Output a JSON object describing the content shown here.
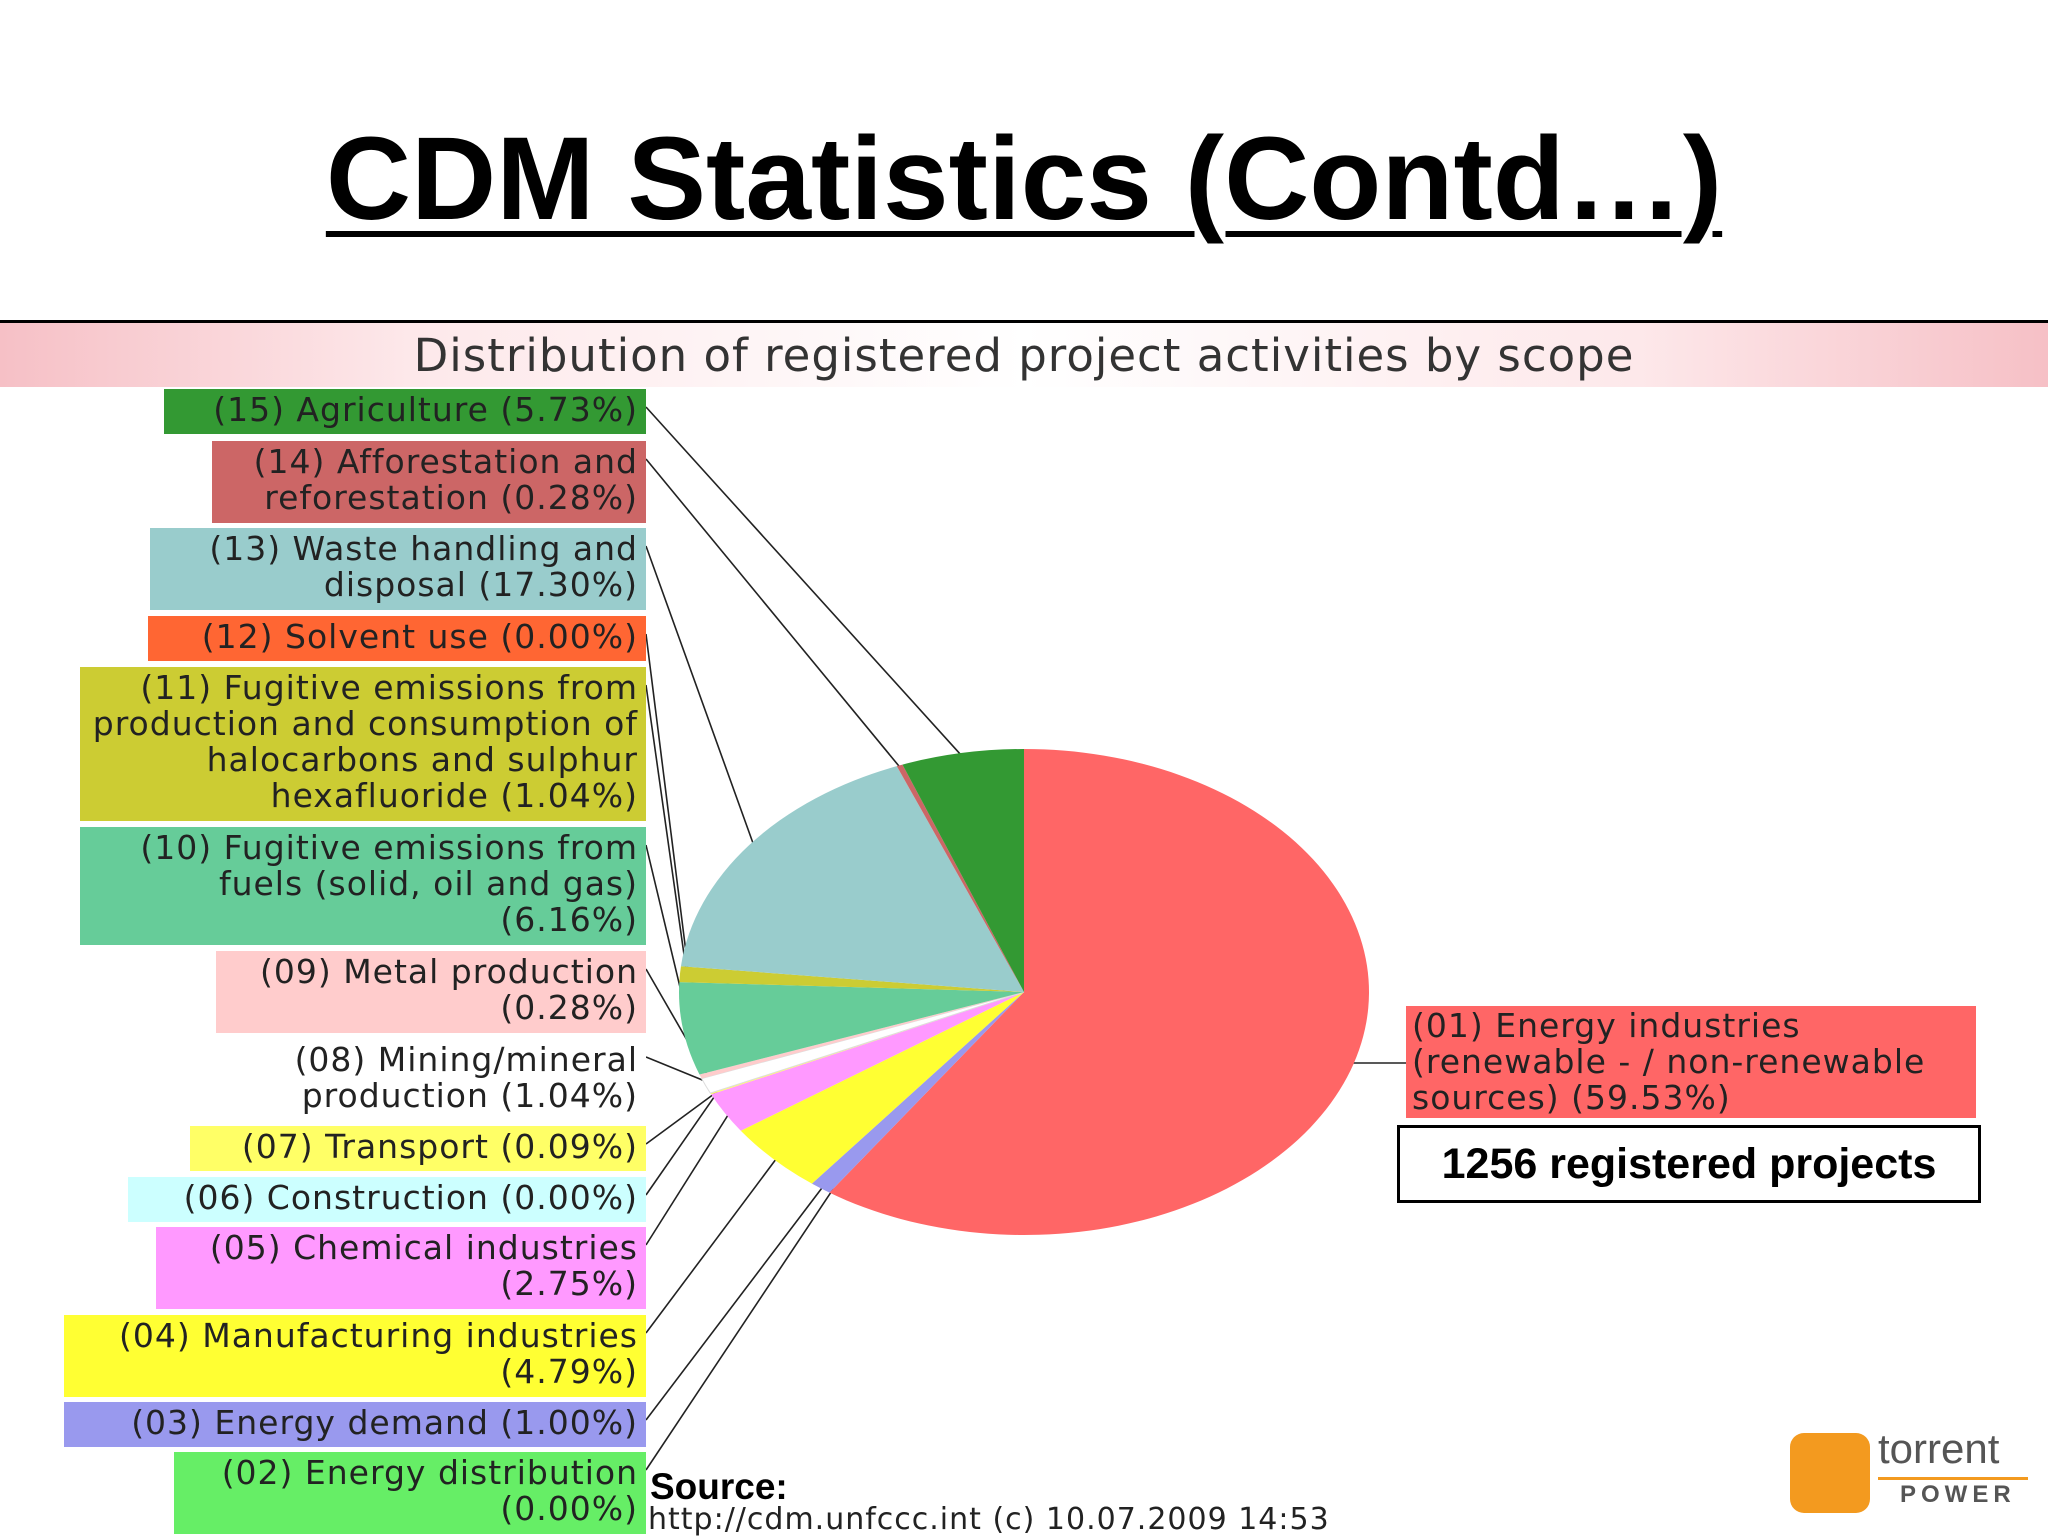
{
  "page": {
    "title": "CDM Statistics (Contd…)",
    "projects_box": "1256 registered projects",
    "source_label": "Source:",
    "source_url": "http://cdm.unfccc.int (c) 10.07.2009 14:53",
    "logo": {
      "brand": "torrent",
      "sub": "POWER"
    }
  },
  "chart_data": {
    "type": "pie",
    "title": "Distribution of registered project activities by scope",
    "slices": [
      {
        "code": "01",
        "label": "(01) Energy industries (renewable - / non-renewable sources) (59.53%)",
        "value": 59.53,
        "color": "#ff6666"
      },
      {
        "code": "02",
        "label": "(02) Energy distribution (0.00%)",
        "value": 0.0,
        "color": "#66ee66"
      },
      {
        "code": "03",
        "label": "(03) Energy demand (1.00%)",
        "value": 1.0,
        "color": "#9999ee"
      },
      {
        "code": "04",
        "label": "(04) Manufacturing industries (4.79%)",
        "value": 4.79,
        "color": "#ffff33"
      },
      {
        "code": "05",
        "label": "(05) Chemical industries (2.75%)",
        "value": 2.75,
        "color": "#ff99ff"
      },
      {
        "code": "06",
        "label": "(06) Construction (0.00%)",
        "value": 0.0,
        "color": "#ccffff"
      },
      {
        "code": "07",
        "label": "(07) Transport (0.09%)",
        "value": 0.09,
        "color": "#ffff66"
      },
      {
        "code": "08",
        "label": "(08) Mining/mineral production (1.04%)",
        "value": 1.04,
        "color": "#ffffff"
      },
      {
        "code": "09",
        "label": "(09) Metal production (0.28%)",
        "value": 0.28,
        "color": "#ffcccc"
      },
      {
        "code": "10",
        "label": "(10) Fugitive emissions from fuels (solid, oil and gas) (6.16%)",
        "value": 6.16,
        "color": "#66cc99"
      },
      {
        "code": "11",
        "label": "(11) Fugitive emissions from production and consumption of halocarbons and sulphur hexafluoride (1.04%)",
        "value": 1.04,
        "color": "#cccc33"
      },
      {
        "code": "12",
        "label": "(12) Solvent use (0.00%)",
        "value": 0.0,
        "color": "#ff6633"
      },
      {
        "code": "13",
        "label": "(13) Waste handling and disposal (17.30%)",
        "value": 17.3,
        "color": "#99cccc"
      },
      {
        "code": "14",
        "label": "(14) Afforestation and reforestation (0.28%)",
        "value": 0.28,
        "color": "#cc6666"
      },
      {
        "code": "15",
        "label": "(15) Agriculture (5.73%)",
        "value": 5.73,
        "color": "#339933"
      }
    ]
  }
}
